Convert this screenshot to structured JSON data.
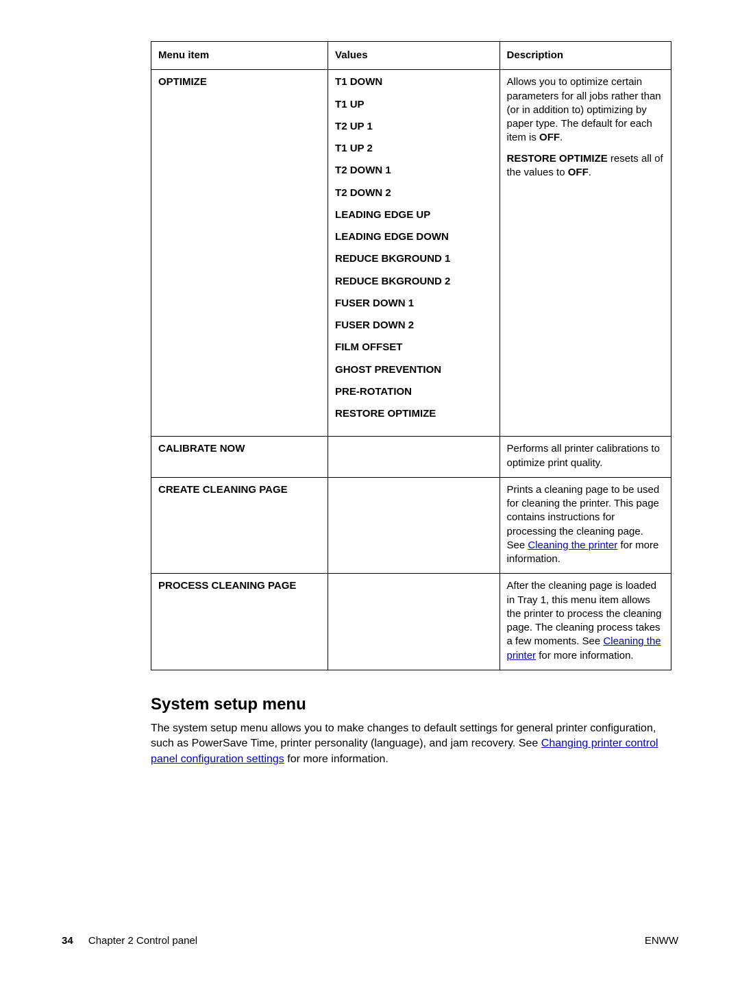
{
  "table": {
    "headers": [
      "Menu item",
      "Values",
      "Description"
    ],
    "rows": [
      {
        "menu": "OPTIMIZE",
        "values": [
          "T1 DOWN",
          "T1 UP",
          "T2 UP 1",
          "T1 UP 2",
          "T2 DOWN 1",
          "T2 DOWN 2",
          "LEADING EDGE UP",
          "LEADING EDGE DOWN",
          "REDUCE BKGROUND 1",
          "REDUCE BKGROUND 2",
          "FUSER DOWN 1",
          "FUSER DOWN 2",
          "FILM OFFSET",
          "GHOST PREVENTION",
          "PRE-ROTATION",
          "RESTORE OPTIMIZE"
        ],
        "desc_p1a": "Allows you to optimize certain parameters for all jobs rather than (or in addition to) optimizing by paper type. The default for each item is ",
        "desc_p1b": "OFF",
        "desc_p1c": ".",
        "desc_p2a": "RESTORE OPTIMIZE",
        "desc_p2b": " resets all of the values to ",
        "desc_p2c": "OFF",
        "desc_p2d": "."
      },
      {
        "menu": "CALIBRATE NOW",
        "desc": "Performs all printer calibrations to optimize print quality."
      },
      {
        "menu": "CREATE CLEANING PAGE",
        "desc_a": "Prints a cleaning page to be used for cleaning the printer. This page contains instructions for processing the cleaning page. See ",
        "desc_link": "Cleaning the printer",
        "desc_b": " for more information."
      },
      {
        "menu": "PROCESS CLEANING PAGE",
        "desc_a": "After the cleaning page is loaded in Tray 1, this menu item allows the printer to process the cleaning page. The cleaning process takes a few moments. See ",
        "desc_link": "Cleaning the printer",
        "desc_b": " for more information."
      }
    ]
  },
  "section": {
    "title": "System setup menu",
    "body_a": "The system setup menu allows you to make changes to default settings for general printer configuration, such as PowerSave Time, printer personality (language), and jam recovery. See ",
    "body_link": "Changing printer control panel configuration settings",
    "body_b": " for more information."
  },
  "footer": {
    "page_number": "34",
    "chapter": "Chapter 2   Control panel",
    "right": "ENWW"
  }
}
